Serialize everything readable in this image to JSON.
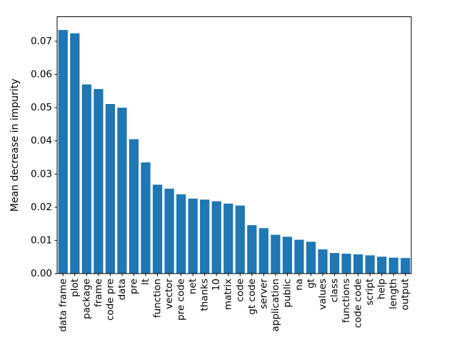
{
  "figure": {
    "background": "#ffffff"
  },
  "chart_data": {
    "type": "bar",
    "title": "",
    "xlabel": "",
    "ylabel": "Mean decrease in impurity",
    "categories": [
      "data frame",
      "plot",
      "package",
      "frame",
      "code pre",
      "data",
      "pre",
      "lt",
      "function",
      "vector",
      "pre code",
      "net",
      "thanks",
      "10",
      "matrix",
      "code",
      "gt code",
      "server",
      "application",
      "public",
      "na",
      "gt",
      "values",
      "class",
      "functions",
      "code code",
      "script",
      "help",
      "length",
      "output"
    ],
    "values": [
      0.0734,
      0.0724,
      0.057,
      0.0556,
      0.0511,
      0.05,
      0.0405,
      0.0335,
      0.0268,
      0.0256,
      0.0239,
      0.0226,
      0.0223,
      0.0218,
      0.0211,
      0.0205,
      0.0146,
      0.0137,
      0.0117,
      0.0111,
      0.0102,
      0.0096,
      0.0073,
      0.0062,
      0.006,
      0.0058,
      0.0055,
      0.0051,
      0.0048,
      0.0047
    ],
    "ylim": [
      0,
      0.0774
    ],
    "yticks": [
      0.0,
      0.01,
      0.02,
      0.03,
      0.04,
      0.05,
      0.06,
      0.07
    ],
    "ytick_decimals": 2,
    "x_tick_label_rotation_deg": 90,
    "grid": false,
    "bar_color": "#1f77b4",
    "spine_color": "#000000",
    "tick_color": "#000000",
    "text_color": "#000000",
    "bar_width_fraction": 0.8
  }
}
